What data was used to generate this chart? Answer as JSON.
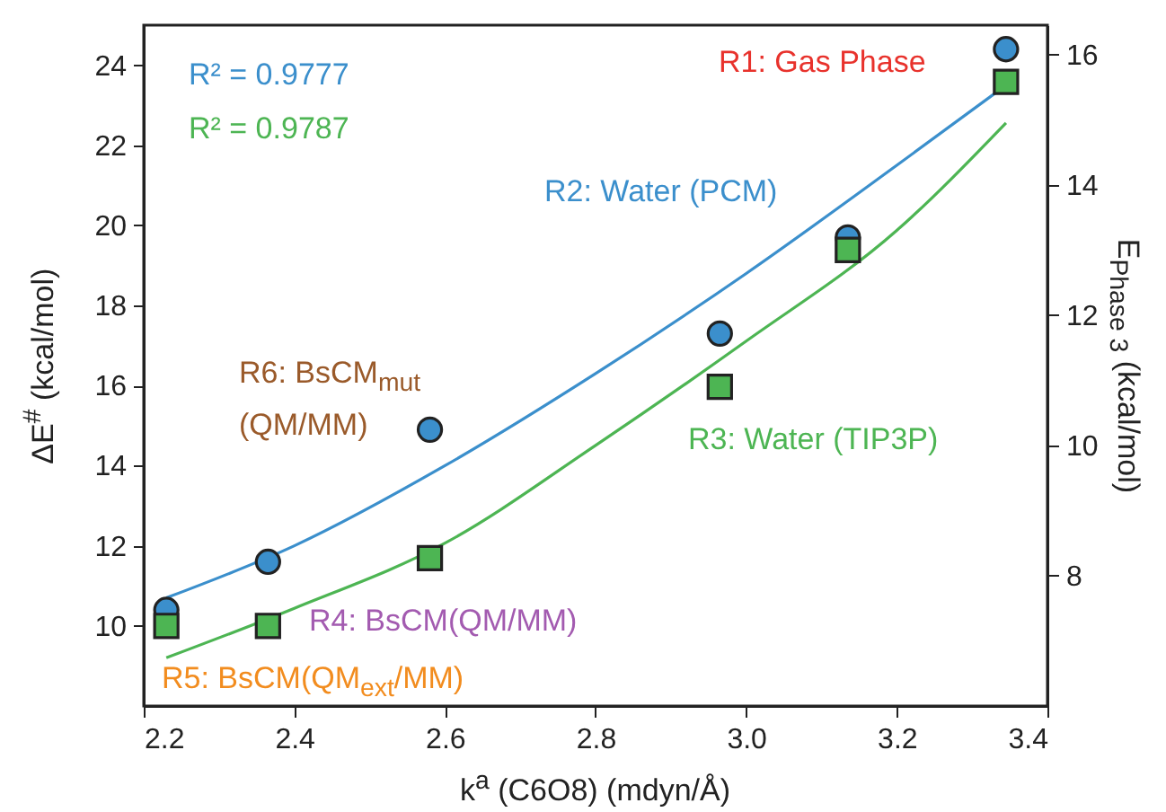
{
  "chart_data": {
    "type": "scatter",
    "xlabel": "k$^{a}$ (C6O8) (mdyn/Å)",
    "ylabel": "ΔE$^{#}$ (kcal/mol)",
    "y2label": "E$_{Phase 3}$ (kcal/mol)",
    "x": [
      2.23,
      2.365,
      2.58,
      2.965,
      3.135,
      3.345
    ],
    "series": [
      {
        "type": "line",
        "color": "#3b8fcc",
        "x": [
          2.23,
          2.4,
          2.6,
          2.8,
          3.0,
          3.2,
          3.345
        ],
        "values": [
          10.7,
          12.0,
          14.0,
          16.3,
          18.8,
          21.5,
          23.5
        ]
      },
      {
        "type": "line",
        "color": "#4db553",
        "axis": "y2",
        "x": [
          2.23,
          2.4,
          2.6,
          2.8,
          3.0,
          3.2,
          3.345
        ],
        "values": [
          6.74,
          7.5,
          8.5,
          10.0,
          11.6,
          13.3,
          14.95
        ]
      },
      {
        "color": "#3b8fcc",
        "marker": "circle",
        "values": [
          10.4,
          11.6,
          14.9,
          17.3,
          19.7,
          24.4
        ]
      },
      {
        "color": "#4db553",
        "marker": "square",
        "axis": "y2",
        "values": [
          7.23,
          7.23,
          8.27,
          10.9,
          13.0,
          15.58
        ]
      }
    ],
    "xlim": [
      2.2,
      3.4
    ],
    "xticks": [
      {
        "value": 2.2,
        "label": "2.2"
      },
      {
        "value": 2.4,
        "label": "2.4"
      },
      {
        "value": 2.6,
        "label": "2.6"
      },
      {
        "value": 2.8,
        "label": "2.8"
      },
      {
        "value": 3,
        "label": "3.0"
      },
      {
        "value": 3.2,
        "label": "3.2"
      },
      {
        "value": 3.4,
        "label": "3.4"
      }
    ],
    "ylim": [
      8,
      25
    ],
    "yticks": [
      10,
      12,
      14,
      16,
      18,
      20,
      22,
      24
    ],
    "y2lim": [
      6,
      16.45
    ],
    "y2ticks": [
      8,
      10,
      12,
      14,
      16
    ],
    "annotations": [
      "R² = 0.9777",
      "R² = 0.9787",
      "R1: Gas Phase",
      "R2: Water (PCM)",
      "R3: Water (TIP3P)",
      "R4: BsCM(QM/MM)",
      "R5: BsCM(QM$_{ext}$/MM)",
      "R6: BsCM$_{mut}$\n(QM/MM)"
    ]
  }
}
